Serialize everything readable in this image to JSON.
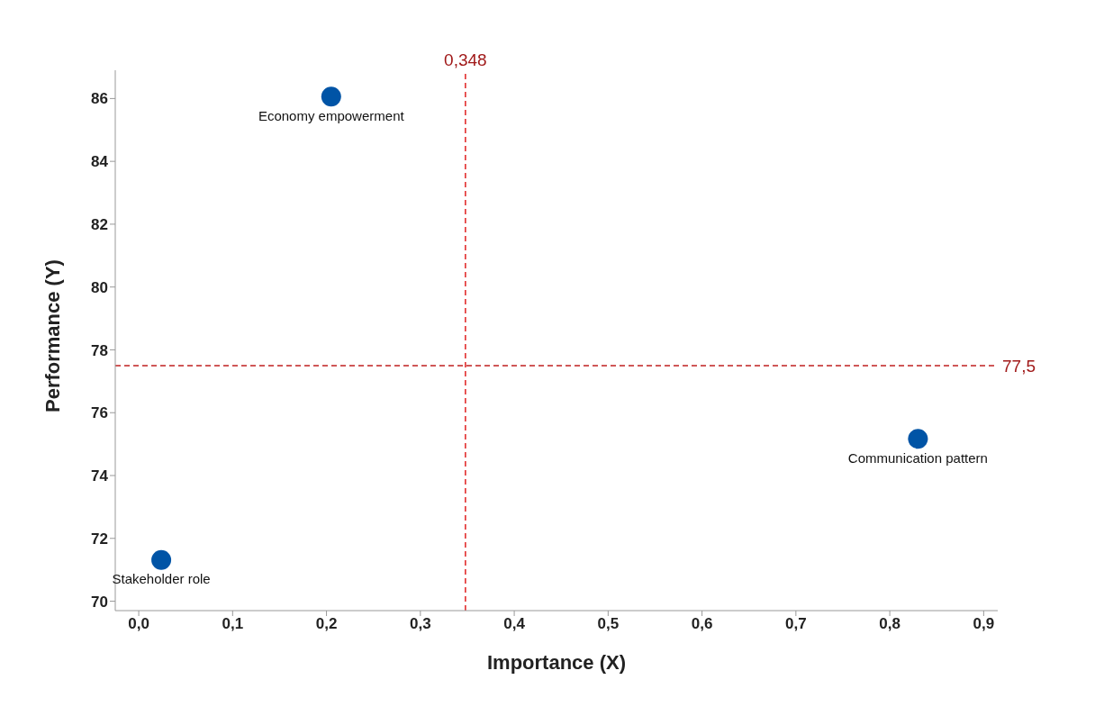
{
  "chart_data": {
    "type": "scatter",
    "xlabel": "Importance (X)",
    "ylabel": "Performance (Y)",
    "x": [
      0.024,
      0.205,
      0.83
    ],
    "values": [
      71.31,
      86.06,
      75.17
    ],
    "color": "#0054a6",
    "marker": "circle",
    "xlim": [
      -0.025,
      0.915
    ],
    "ylim": [
      69.7,
      86.9
    ],
    "xticks": [
      {
        "value": 0,
        "label": "0,0"
      },
      {
        "value": 0.1,
        "label": "0,1"
      },
      {
        "value": 0.2,
        "label": "0,2"
      },
      {
        "value": 0.3,
        "label": "0,3"
      },
      {
        "value": 0.4,
        "label": "0,4"
      },
      {
        "value": 0.5,
        "label": "0,5"
      },
      {
        "value": 0.6,
        "label": "0,6"
      },
      {
        "value": 0.7,
        "label": "0,7"
      },
      {
        "value": 0.8,
        "label": "0,8"
      },
      {
        "value": 0.9,
        "label": "0,9"
      }
    ],
    "yticks": [
      70,
      72,
      74,
      76,
      78,
      80,
      82,
      84,
      86
    ],
    "grid": false,
    "ref_lines": [
      {
        "axis": "x",
        "value": 0.348,
        "label": "0,348",
        "color": "#e02020",
        "line_style": "dashed"
      },
      {
        "axis": "y",
        "value": 77.5,
        "label": "77,5",
        "color": "#c02020",
        "line_style": "dashed"
      }
    ],
    "annotations": [
      {
        "text": "Stakeholder role",
        "x": 0.024,
        "y": 71.31
      },
      {
        "text": "Economy empowerment",
        "x": 0.205,
        "y": 86.06
      },
      {
        "text": "Communication pattern",
        "x": 0.83,
        "y": 75.17
      }
    ]
  }
}
